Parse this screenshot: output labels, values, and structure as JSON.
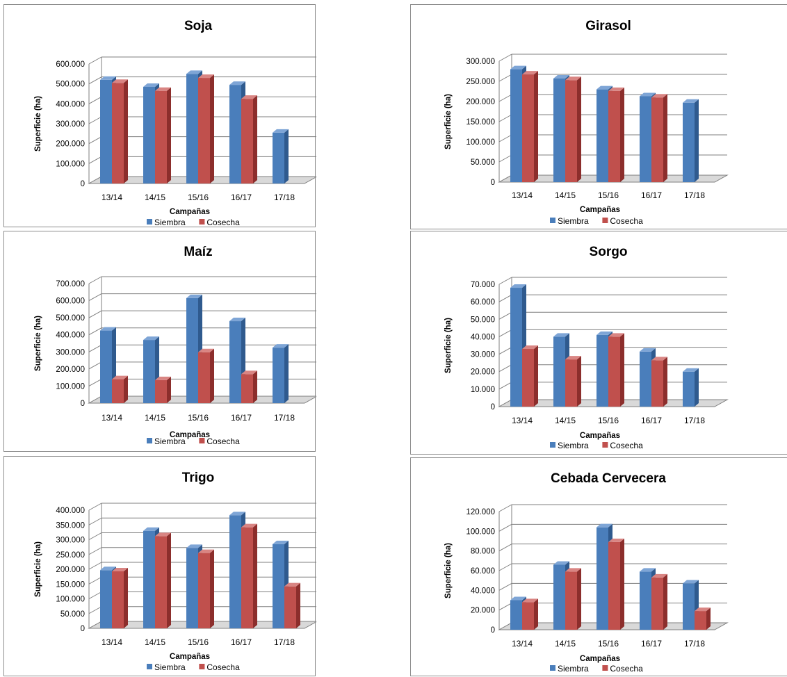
{
  "colors": {
    "siembra": "#4a7ebb",
    "siembra_side": "#2f5a8e",
    "siembra_top": "#7ea5d6",
    "cosecha": "#c0504d",
    "cosecha_side": "#8c2e2c",
    "cosecha_top": "#d98583",
    "grid": "#7f7f7f",
    "floor": "#d9d9d9"
  },
  "chart_data": [
    {
      "type": "bar",
      "title": "Soja",
      "xlabel": "Campañas",
      "ylabel": "Superficie (ha)",
      "categories": [
        "13/14",
        "14/15",
        "15/16",
        "16/17",
        "17/18"
      ],
      "ylim": [
        0,
        600000
      ],
      "yticks": [
        "0",
        "100.000",
        "200.000",
        "300.000",
        "400.000",
        "500.000",
        "600.000"
      ],
      "series": [
        {
          "name": "Siembra",
          "values": [
            520000,
            485000,
            550000,
            495000,
            255000
          ]
        },
        {
          "name": "Cosecha",
          "values": [
            505000,
            465000,
            530000,
            425000,
            null
          ]
        }
      ],
      "legend": "bottom"
    },
    {
      "type": "bar",
      "title": "Girasol",
      "xlabel": "Campañas",
      "ylabel": "Superficie (ha)",
      "categories": [
        "13/14",
        "14/15",
        "15/16",
        "16/17",
        "17/18"
      ],
      "ylim": [
        0,
        300000
      ],
      "yticks": [
        "0",
        "50.000",
        "100.000",
        "150.000",
        "200.000",
        "250.000",
        "300.000"
      ],
      "series": [
        {
          "name": "Siembra",
          "values": [
            280000,
            257000,
            230000,
            213000,
            197000
          ]
        },
        {
          "name": "Cosecha",
          "values": [
            267000,
            253000,
            226000,
            210000,
            null
          ]
        }
      ],
      "legend": "bottom"
    },
    {
      "type": "bar",
      "title": "Maíz",
      "xlabel": "Campañas",
      "ylabel": "Superficie (ha)",
      "categories": [
        "13/14",
        "14/15",
        "15/16",
        "16/17",
        "17/18"
      ],
      "ylim": [
        0,
        700000
      ],
      "yticks": [
        "0",
        "100.000",
        "200.000",
        "300.000",
        "400.000",
        "500.000",
        "600.000",
        "700.000"
      ],
      "series": [
        {
          "name": "Siembra",
          "values": [
            425000,
            370000,
            615000,
            480000,
            325000
          ]
        },
        {
          "name": "Cosecha",
          "values": [
            140000,
            135000,
            298000,
            170000,
            null
          ]
        }
      ],
      "legend": "bottom"
    },
    {
      "type": "bar",
      "title": "Sorgo",
      "xlabel": "Campañas",
      "ylabel": "Superficie (ha)",
      "categories": [
        "13/14",
        "14/15",
        "15/16",
        "16/17",
        "17/18"
      ],
      "ylim": [
        0,
        70000
      ],
      "yticks": [
        "0",
        "10.000",
        "20.000",
        "30.000",
        "40.000",
        "50.000",
        "60.000",
        "70.000"
      ],
      "series": [
        {
          "name": "Siembra",
          "values": [
            68000,
            40000,
            41000,
            31500,
            20000
          ]
        },
        {
          "name": "Cosecha",
          "values": [
            33000,
            27000,
            40000,
            26500,
            null
          ]
        }
      ],
      "legend": "bottom"
    },
    {
      "type": "bar",
      "title": "Trigo",
      "xlabel": "Campañas",
      "ylabel": "Superficie (ha)",
      "categories": [
        "13/14",
        "14/15",
        "15/16",
        "16/17",
        "17/18"
      ],
      "ylim": [
        0,
        400000
      ],
      "yticks": [
        "0",
        "50.000",
        "100.000",
        "150.000",
        "200.000",
        "250.000",
        "300.000",
        "350.000",
        "400.000"
      ],
      "series": [
        {
          "name": "Siembra",
          "values": [
            197000,
            330000,
            272000,
            383000,
            285000
          ]
        },
        {
          "name": "Cosecha",
          "values": [
            193000,
            312000,
            255000,
            342000,
            142000
          ]
        }
      ],
      "legend": "bottom"
    },
    {
      "type": "bar",
      "title": "Cebada Cervecera",
      "xlabel": "Campañas",
      "ylabel": "Superficie (ha)",
      "categories": [
        "13/14",
        "14/15",
        "15/16",
        "16/17",
        "17/18"
      ],
      "ylim": [
        0,
        120000
      ],
      "yticks": [
        "0",
        "20.000",
        "40.000",
        "60.000",
        "80.000",
        "100.000",
        "120.000"
      ],
      "series": [
        {
          "name": "Siembra",
          "values": [
            30000,
            66000,
            104000,
            59000,
            47000
          ]
        },
        {
          "name": "Cosecha",
          "values": [
            28000,
            59000,
            89000,
            53000,
            19000
          ]
        }
      ],
      "legend": "bottom"
    }
  ]
}
